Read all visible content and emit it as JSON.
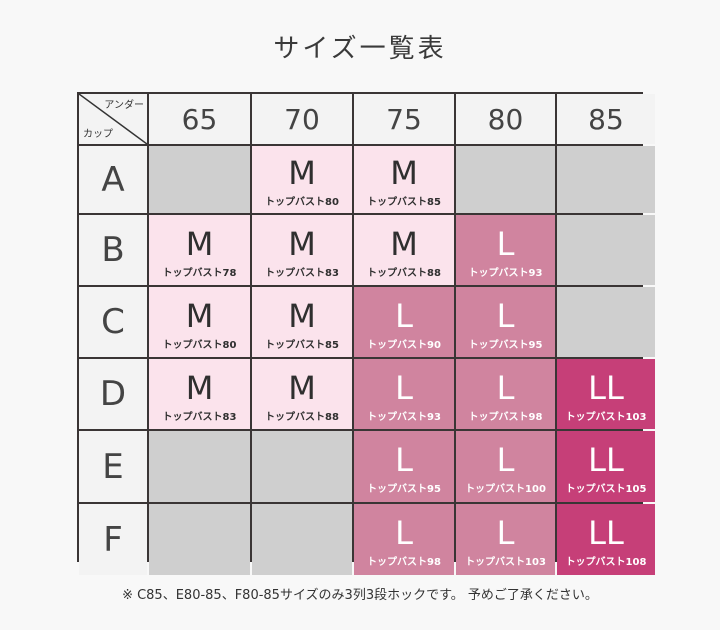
{
  "title": "サイズ一覧表",
  "corner": {
    "under_label": "アンダー",
    "cup_label": "カップ"
  },
  "under_sizes": [
    "65",
    "70",
    "75",
    "80",
    "85"
  ],
  "colors": {
    "empty": "#cfcfcf",
    "M": "#fbe3ec",
    "L": "#d0849f",
    "LL": "#c63f78"
  },
  "rows": [
    {
      "cup": "A",
      "cells": [
        {
          "size": "",
          "bust": ""
        },
        {
          "size": "M",
          "bust": "トップバスト80"
        },
        {
          "size": "M",
          "bust": "トップバスト85"
        },
        {
          "size": "",
          "bust": ""
        },
        {
          "size": "",
          "bust": ""
        }
      ]
    },
    {
      "cup": "B",
      "cells": [
        {
          "size": "M",
          "bust": "トップバスト78"
        },
        {
          "size": "M",
          "bust": "トップバスト83"
        },
        {
          "size": "M",
          "bust": "トップバスト88"
        },
        {
          "size": "L",
          "bust": "トップバスト93"
        },
        {
          "size": "",
          "bust": ""
        }
      ]
    },
    {
      "cup": "C",
      "cells": [
        {
          "size": "M",
          "bust": "トップバスト80"
        },
        {
          "size": "M",
          "bust": "トップバスト85"
        },
        {
          "size": "L",
          "bust": "トップバスト90"
        },
        {
          "size": "L",
          "bust": "トップバスト95"
        },
        {
          "size": "",
          "bust": ""
        }
      ]
    },
    {
      "cup": "D",
      "cells": [
        {
          "size": "M",
          "bust": "トップバスト83"
        },
        {
          "size": "M",
          "bust": "トップバスト88"
        },
        {
          "size": "L",
          "bust": "トップバスト93"
        },
        {
          "size": "L",
          "bust": "トップバスト98"
        },
        {
          "size": "LL",
          "bust": "トップバスト103"
        }
      ]
    },
    {
      "cup": "E",
      "cells": [
        {
          "size": "",
          "bust": ""
        },
        {
          "size": "",
          "bust": ""
        },
        {
          "size": "L",
          "bust": "トップバスト95"
        },
        {
          "size": "L",
          "bust": "トップバスト100"
        },
        {
          "size": "LL",
          "bust": "トップバスト105"
        }
      ]
    },
    {
      "cup": "F",
      "cells": [
        {
          "size": "",
          "bust": ""
        },
        {
          "size": "",
          "bust": ""
        },
        {
          "size": "L",
          "bust": "トップバスト98"
        },
        {
          "size": "L",
          "bust": "トップバスト103"
        },
        {
          "size": "LL",
          "bust": "トップバスト108"
        }
      ]
    }
  ],
  "note": "※ C85、E80-85、F80-85サイズのみ3列3段ホックです。 予めご了承ください。"
}
